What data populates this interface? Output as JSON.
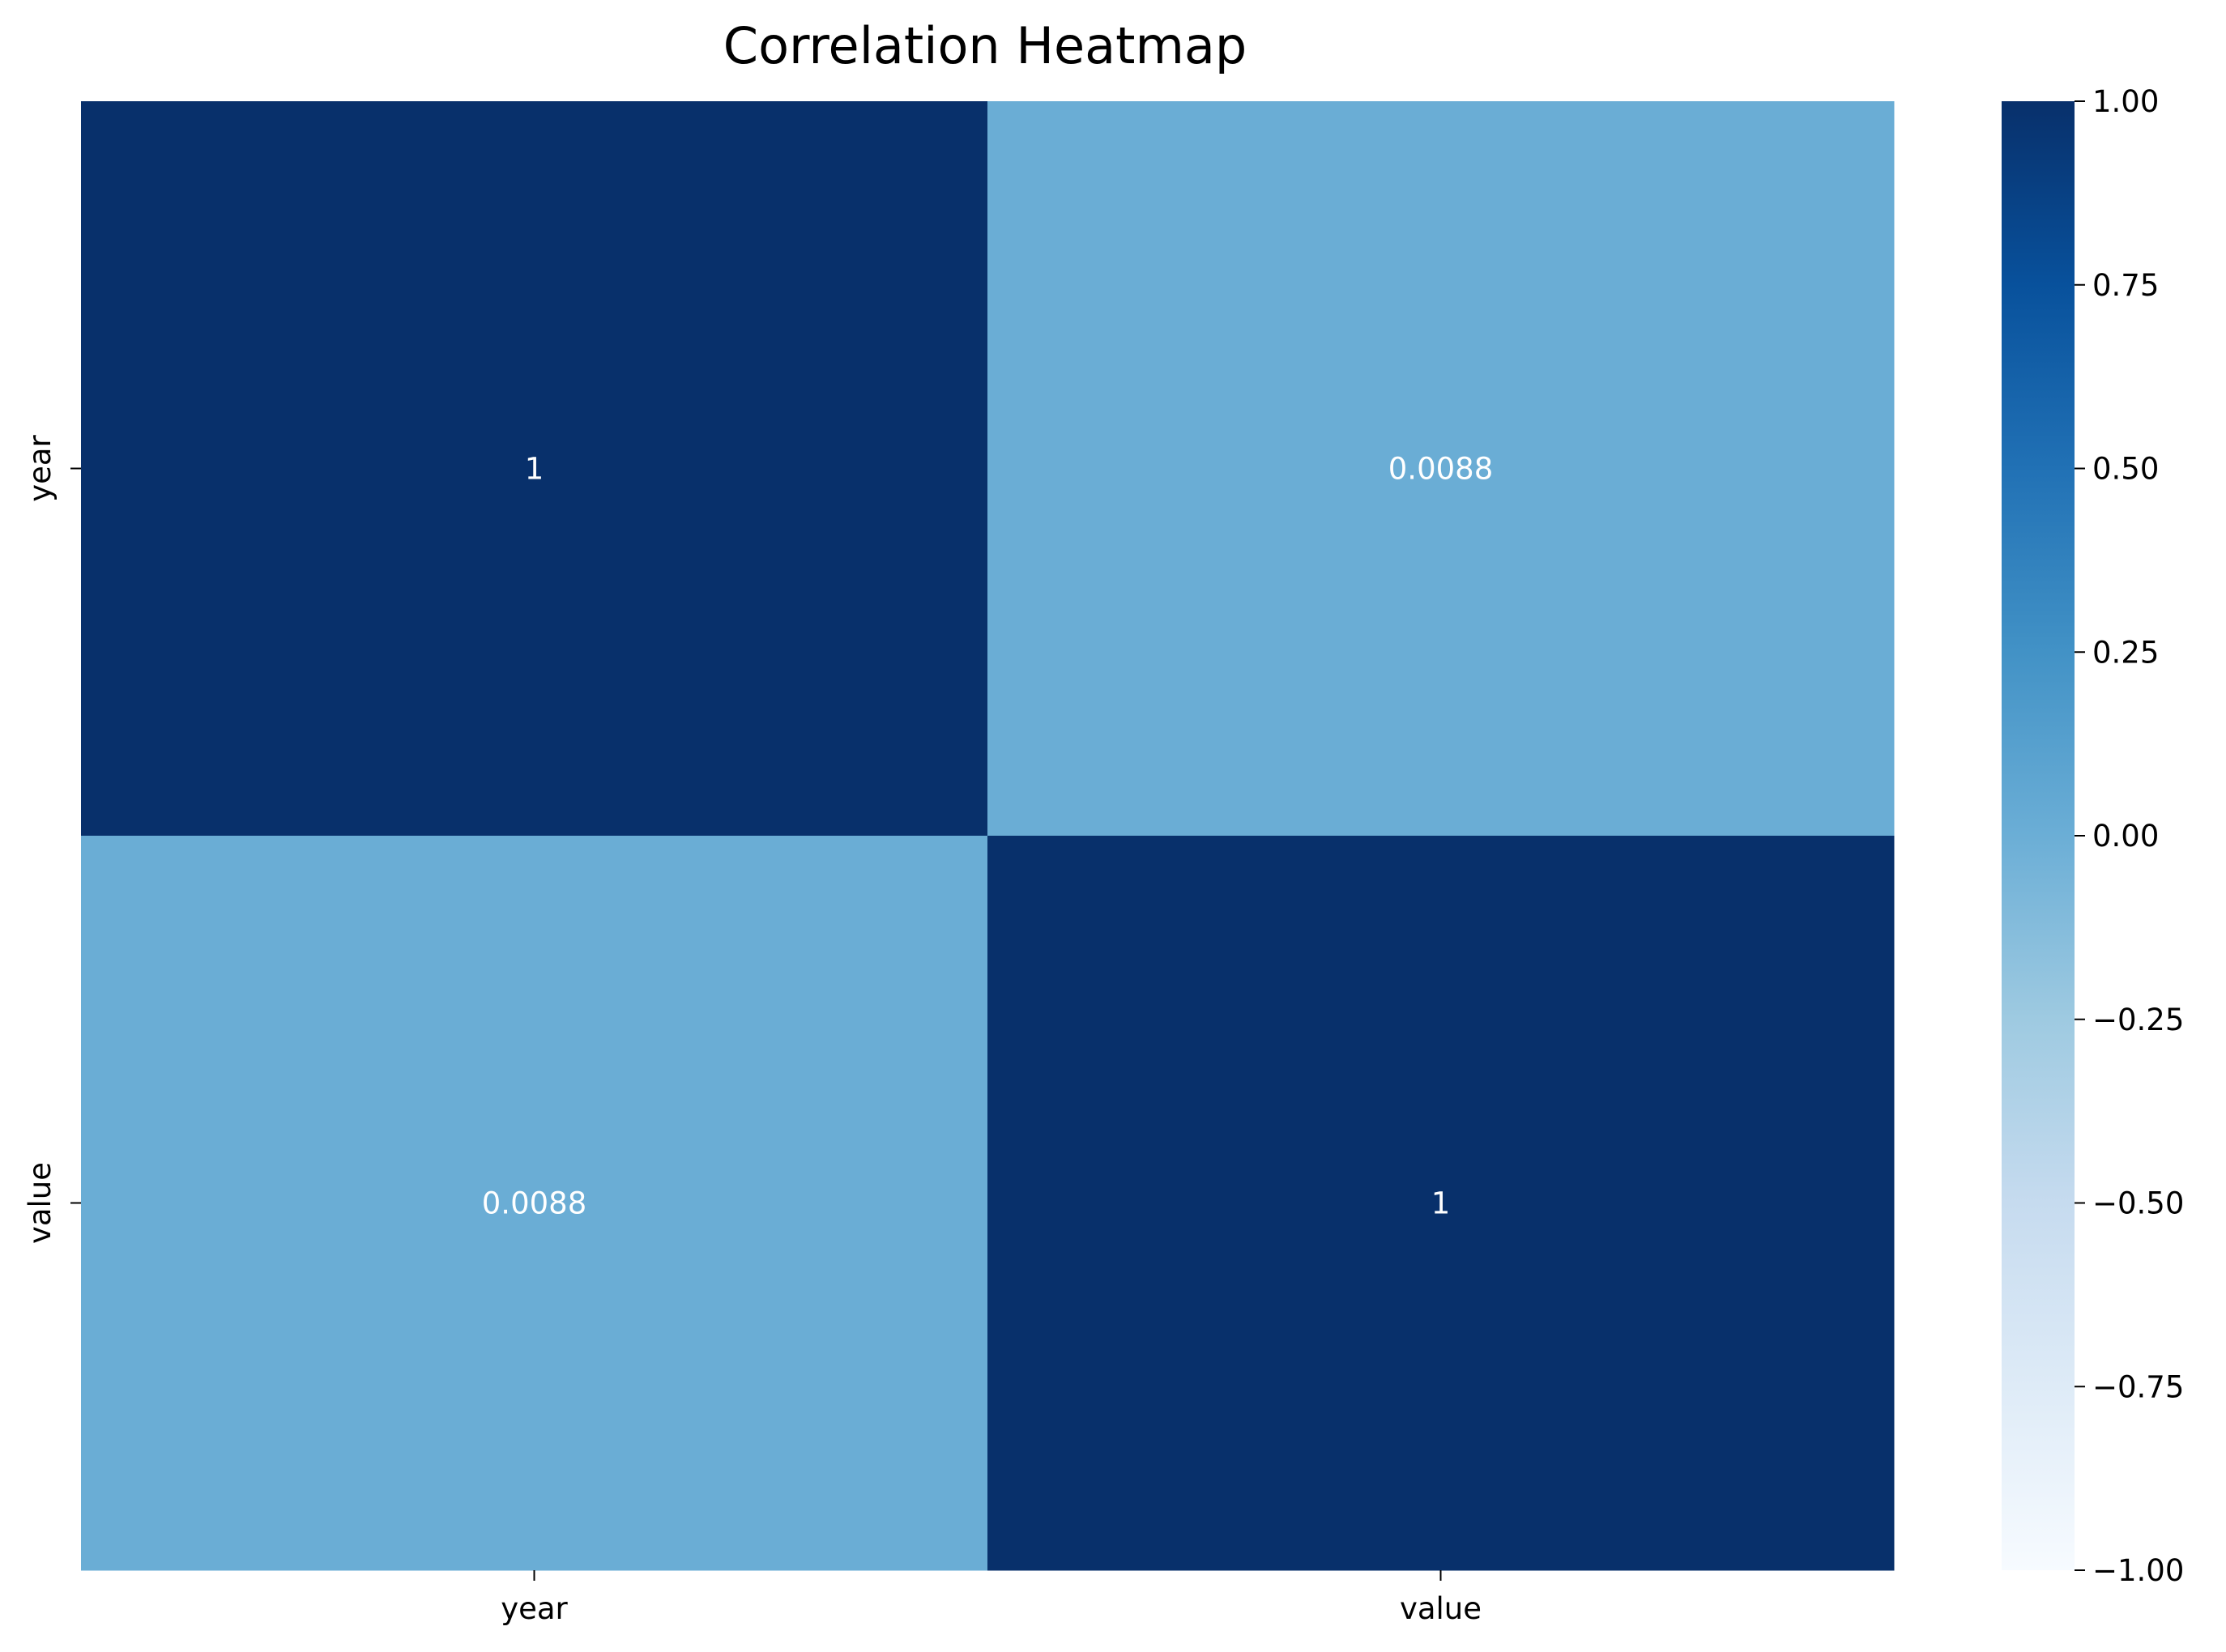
{
  "chart_data": {
    "type": "heatmap",
    "title": "Correlation Heatmap",
    "x_categories": [
      "year",
      "value"
    ],
    "y_categories": [
      "year",
      "value"
    ],
    "values": [
      [
        1,
        0.0088
      ],
      [
        0.0088,
        1
      ]
    ],
    "annotations": [
      [
        "1",
        "0.0088"
      ],
      [
        "0.0088",
        "1"
      ]
    ],
    "colormap": "Blues",
    "vmin": -1,
    "vmax": 1,
    "colorbar_ticks": [
      1.0,
      0.75,
      0.5,
      0.25,
      0.0,
      -0.25,
      -0.5,
      -0.75,
      -1.0
    ],
    "colorbar_tick_labels": [
      "1.00",
      "0.75",
      "0.50",
      "0.25",
      "0.00",
      "−0.25",
      "−0.50",
      "−0.75",
      "−1.00"
    ],
    "annotation_color": "#ffffff",
    "grid": false
  }
}
